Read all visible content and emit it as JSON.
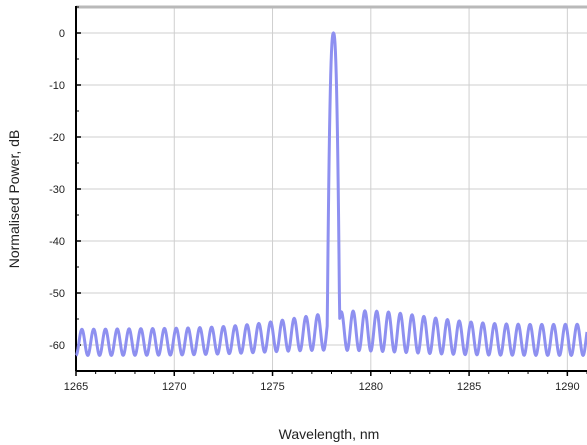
{
  "chart_data": {
    "type": "line",
    "xlabel": "Wavelength, nm",
    "ylabel": "Normalised Power, dB",
    "xlim": [
      1265,
      1291
    ],
    "ylim": [
      -65,
      5
    ],
    "x_ticks": [
      1265,
      1270,
      1275,
      1280,
      1285,
      1290
    ],
    "x_tick_labels": [
      "1265",
      "1270",
      "1275",
      "1280",
      "1285",
      "1290"
    ],
    "y_ticks": [
      0,
      -10,
      -20,
      -30,
      -40,
      -50,
      -60
    ],
    "y_tick_labels": [
      "0",
      "-10",
      "-20",
      "-30",
      "-40",
      "-50",
      "-60"
    ],
    "grid": true,
    "legend": "none",
    "colors": {
      "series": "#8E90F0",
      "axis": "#000000",
      "grid": "#CFCFCF"
    },
    "series": [
      {
        "type": "spectrum",
        "peak": {
          "center_nm": 1278.1,
          "value_db": 0,
          "width_nm_at_-50db": 0.6
        },
        "sidelobes": {
          "period_nm": 0.6,
          "baseline_db": -62,
          "peak_db_left": -57,
          "peak_db_center": -53,
          "peak_db_right": -56
        }
      }
    ]
  }
}
